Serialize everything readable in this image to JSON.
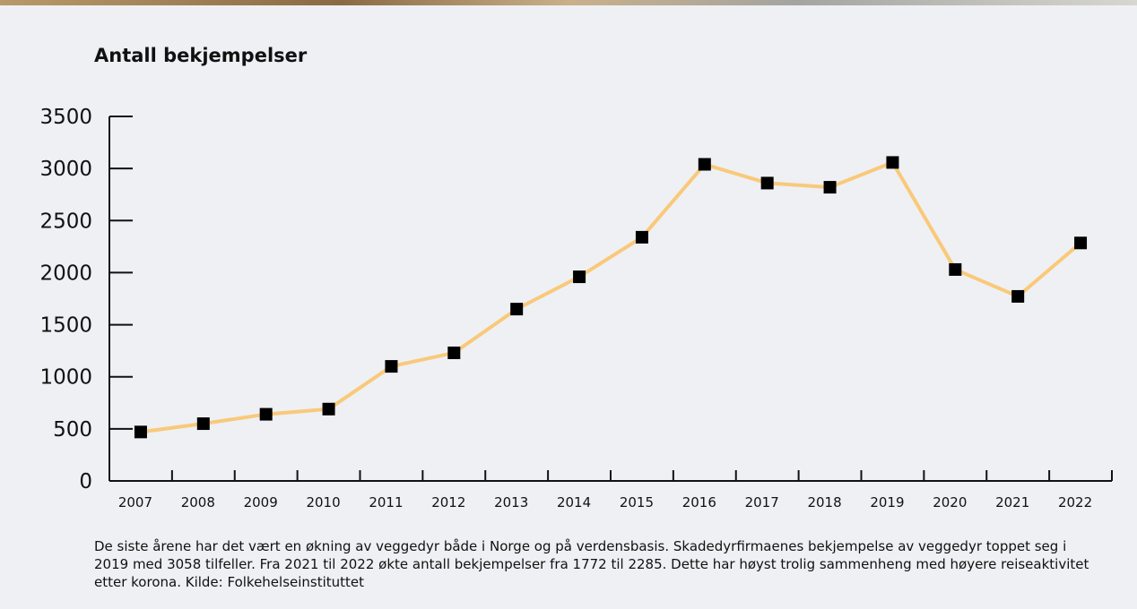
{
  "chart_data": {
    "type": "line",
    "title": "Antall bekjempelser",
    "categories": [
      "2007",
      "2008",
      "2009",
      "2010",
      "2011",
      "2012",
      "2013",
      "2014",
      "2015",
      "2016",
      "2017",
      "2018",
      "2019",
      "2020",
      "2021",
      "2022"
    ],
    "values": [
      470,
      550,
      640,
      690,
      1100,
      1230,
      1650,
      1960,
      2340,
      3040,
      2860,
      2820,
      3058,
      2030,
      1772,
      2285
    ],
    "color": "#f9c97a",
    "marker_color": "#000000",
    "ylim": [
      0,
      3500
    ],
    "yticks": [
      0,
      500,
      1000,
      1500,
      2000,
      2500,
      3000,
      3500
    ],
    "grid": false,
    "caption": "De siste årene har det vært en økning av veggedyr både i Norge og på verdensbasis. Skadedyrfirmaenes bekjempelse av veggedyr toppet seg i 2019 med 3058 tilfeller. Fra 2021 til 2022 økte antall bekjempelser fra 1772 til 2285. Dette har høyst trolig sammenheng med høyere reiseaktivitet etter korona. Kilde: Folkehelseinstituttet"
  }
}
